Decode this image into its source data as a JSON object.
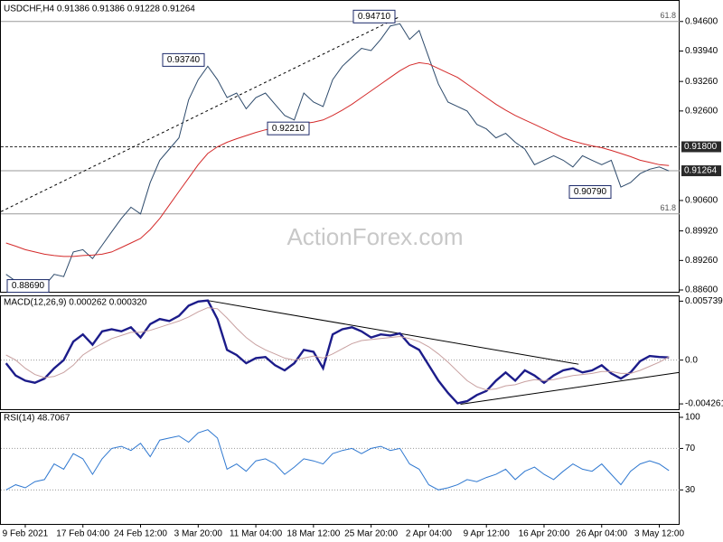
{
  "chart_data": [
    {
      "type": "line",
      "title": "USDCHF,H4  0.91386 0.91386 0.91228 0.91264",
      "watermark": "ActionForex.com",
      "ylim": [
        0.8856,
        0.9508
      ],
      "yticks": [
        {
          "value": 0.946,
          "label": "0.94600"
        },
        {
          "value": 0.9394,
          "label": "0.93940"
        },
        {
          "value": 0.9326,
          "label": "0.93260"
        },
        {
          "value": 0.926,
          "label": "0.92600"
        },
        {
          "value": 0.906,
          "label": "0.90600"
        },
        {
          "value": 0.8992,
          "label": "0.89920"
        },
        {
          "value": 0.8926,
          "label": "0.89260"
        },
        {
          "value": 0.886,
          "label": "0.88600"
        }
      ],
      "series": [
        {
          "color": "#2d4a6b",
          "values": [
            0.8895,
            0.888,
            0.8878,
            0.8872,
            0.8869,
            0.8895,
            0.889,
            0.8945,
            0.895,
            0.893,
            0.896,
            0.899,
            0.902,
            0.9045,
            0.903,
            0.91,
            0.915,
            0.9175,
            0.92,
            0.9285,
            0.933,
            0.936,
            0.933,
            0.929,
            0.93,
            0.9265,
            0.929,
            0.93,
            0.9275,
            0.925,
            0.924,
            0.93,
            0.928,
            0.927,
            0.933,
            0.936,
            0.938,
            0.94,
            0.9395,
            0.942,
            0.945,
            0.9455,
            0.942,
            0.944,
            0.938,
            0.932,
            0.928,
            0.927,
            0.926,
            0.923,
            0.922,
            0.92,
            0.921,
            0.919,
            0.9175,
            0.914,
            0.915,
            0.916,
            0.915,
            0.9135,
            0.916,
            0.915,
            0.914,
            0.915,
            0.909,
            0.91,
            0.912,
            0.913,
            0.9135,
            0.9126
          ]
        },
        {
          "color": "#d42a2a",
          "values": [
            0.8965,
            0.8958,
            0.895,
            0.8945,
            0.894,
            0.8937,
            0.8935,
            0.8935,
            0.8937,
            0.8938,
            0.894,
            0.8945,
            0.8955,
            0.8965,
            0.8975,
            0.8995,
            0.902,
            0.905,
            0.908,
            0.911,
            0.914,
            0.9165,
            0.918,
            0.919,
            0.9198,
            0.9205,
            0.9212,
            0.9218,
            0.9222,
            0.9225,
            0.9228,
            0.9232,
            0.9235,
            0.924,
            0.925,
            0.9262,
            0.9275,
            0.929,
            0.9305,
            0.932,
            0.9335,
            0.935,
            0.9362,
            0.9368,
            0.9365,
            0.9355,
            0.9345,
            0.9335,
            0.932,
            0.9305,
            0.929,
            0.9275,
            0.9262,
            0.925,
            0.924,
            0.923,
            0.922,
            0.921,
            0.92,
            0.9193,
            0.9187,
            0.9182,
            0.9178,
            0.9172,
            0.9165,
            0.9158,
            0.915,
            0.9145,
            0.914,
            0.9138
          ]
        }
      ],
      "markers": [
        {
          "value": 0.918,
          "label": "0.91800",
          "style": "dashed"
        },
        {
          "value": 0.91264,
          "label": "0.91264",
          "style": "solid"
        }
      ],
      "levels": [
        {
          "value": 0.946,
          "label": "61.8"
        },
        {
          "value": 0.903,
          "label": "61.8"
        }
      ],
      "annotations": [
        {
          "value": 0.9471,
          "label": "0.94710"
        },
        {
          "value": 0.9374,
          "label": "0.93740"
        },
        {
          "value": 0.9221,
          "label": "0.92210"
        },
        {
          "value": 0.9079,
          "label": "0.90790"
        },
        {
          "value": 0.8869,
          "label": "0.88690"
        }
      ],
      "trend_lines": [
        {
          "x": [
            -0.6,
            41
          ],
          "values": [
            0.9035,
            0.9471
          ]
        }
      ]
    },
    {
      "type": "line",
      "title": "MACD(12,26,9) 0.000262 0.000320",
      "ylim": [
        -0.00478,
        0.0063
      ],
      "yticks": [
        0.005739,
        {
          "value": 0,
          "label": "0.0"
        },
        -0.004261
      ],
      "grid_values": [
        0
      ],
      "series": [
        {
          "color": "#1c1c8a",
          "values": [
            -0.0003,
            -0.0015,
            -0.002,
            -0.0022,
            -0.0018,
            -0.0008,
            0,
            0.0018,
            0.0025,
            0.0015,
            0.0028,
            0.003,
            0.0028,
            0.0032,
            0.0022,
            0.0035,
            0.004,
            0.0038,
            0.0043,
            0.0053,
            0.0057,
            0.0058,
            0.004,
            0.001,
            0.0005,
            -0.0003,
            0.0002,
            0.0003,
            -0.0005,
            -0.001,
            -0.0003,
            0.001,
            0.0008,
            -0.0008,
            0.0025,
            0.003,
            0.0032,
            0.0028,
            0.0022,
            0.0025,
            0.0024,
            0.0026,
            0.0015,
            0.001,
            -0.0005,
            -0.002,
            -0.0032,
            -0.0042,
            -0.004,
            -0.0034,
            -0.003,
            -0.002,
            -0.0012,
            -0.002,
            -0.001,
            -0.0015,
            -0.0022,
            -0.0015,
            -0.001,
            -0.0008,
            -0.0012,
            -0.001,
            -0.0005,
            -0.0013,
            -0.0018,
            -0.0012,
            -0.0001,
            0.0004,
            0.0003,
            0.000262
          ]
        },
        {
          "color": "#c8a0a0",
          "values": [
            0.0005,
            0,
            -0.0008,
            -0.0014,
            -0.0017,
            -0.0016,
            -0.0012,
            -0.0005,
            0.0005,
            0.0011,
            0.0016,
            0.0021,
            0.0024,
            0.0027,
            0.0027,
            0.0029,
            0.0032,
            0.0035,
            0.0038,
            0.0042,
            0.0047,
            0.0051,
            0.005,
            0.0041,
            0.0031,
            0.0022,
            0.0015,
            0.001,
            0.0006,
            0.0002,
            0,
            0.0002,
            0.0004,
            0.0002,
            0.0006,
            0.0011,
            0.0016,
            0.0019,
            0.002,
            0.0021,
            0.0022,
            0.0023,
            0.0021,
            0.0018,
            0.0013,
            0.0006,
            -0.0002,
            -0.0011,
            -0.002,
            -0.0026,
            -0.0029,
            -0.0028,
            -0.0025,
            -0.0024,
            -0.0021,
            -0.0019,
            -0.002,
            -0.0019,
            -0.0017,
            -0.0015,
            -0.0014,
            -0.0013,
            -0.0011,
            -0.0011,
            -0.0013,
            -0.0013,
            -0.001,
            -0.0006,
            -0.0002,
            0.00032
          ]
        }
      ],
      "trend_lines": [
        {
          "x": [
            21,
            59.6
          ],
          "values": [
            0.0058,
            -0.0004
          ]
        },
        {
          "x": [
            47.3,
            70.1
          ],
          "values": [
            -0.0043,
            -0.0012
          ]
        }
      ]
    },
    {
      "type": "line",
      "title": "RSI(14) 48.7067",
      "ylim": [
        -2.8,
        105.2
      ],
      "yticks": [
        100,
        70,
        30
      ],
      "grid_values": [
        70,
        30
      ],
      "categories": [
        null,
        null,
        "9 Feb 2021",
        null,
        null,
        null,
        null,
        null,
        "17 Feb 04:00",
        null,
        null,
        null,
        null,
        null,
        "24 Feb 12:00",
        null,
        null,
        null,
        null,
        null,
        "3 Mar 20:00",
        null,
        null,
        null,
        null,
        null,
        "11 Mar 04:00",
        null,
        null,
        null,
        null,
        null,
        "18 Mar 12:00",
        null,
        null,
        null,
        null,
        null,
        "25 Mar 20:00",
        null,
        null,
        null,
        null,
        null,
        "2 Apr 04:00",
        null,
        null,
        null,
        null,
        null,
        "9 Apr 12:00",
        null,
        null,
        null,
        null,
        null,
        "16 Apr 20:00",
        null,
        null,
        null,
        null,
        null,
        "26 Apr 04:00",
        null,
        null,
        null,
        null,
        null,
        "3 May 12:00",
        null
      ],
      "series": [
        {
          "color": "#2f78d0",
          "values": [
            30,
            35,
            32,
            38,
            40,
            55,
            50,
            65,
            60,
            45,
            60,
            70,
            72,
            68,
            75,
            62,
            78,
            80,
            82,
            76,
            85,
            88,
            80,
            50,
            55,
            48,
            58,
            60,
            55,
            45,
            52,
            60,
            58,
            55,
            65,
            68,
            70,
            65,
            70,
            72,
            68,
            70,
            55,
            50,
            35,
            30,
            32,
            35,
            40,
            38,
            42,
            45,
            50,
            40,
            48,
            52,
            45,
            40,
            48,
            55,
            50,
            48,
            55,
            45,
            35,
            48,
            55,
            58,
            55,
            48.7067
          ]
        }
      ]
    }
  ]
}
